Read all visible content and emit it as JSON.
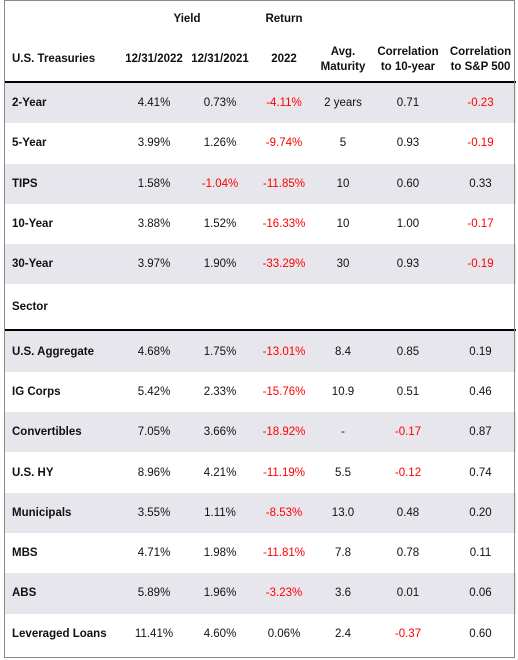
{
  "header": {
    "yield_label": "Yield",
    "return_label": "Return",
    "group_label": "U.S. Treasuries",
    "col_yield_2022": "12/31/2022",
    "col_yield_2021": "12/31/2021",
    "col_return_2022": "2022",
    "col_maturity_line1": "Avg.",
    "col_maturity_line2": "Maturity",
    "col_corr10_line1": "Correlation",
    "col_corr10_line2": "to 10-year",
    "col_corrsp_line1": "Correlation",
    "col_corrsp_line2": "to S&P 500"
  },
  "treasuries": [
    {
      "name": "2-Year",
      "y2022": "4.41%",
      "y2021": "0.73%",
      "ret": "-4.11%",
      "maturity": "2 years",
      "corr10": "0.71",
      "corrsp": "-0.23"
    },
    {
      "name": "5-Year",
      "y2022": "3.99%",
      "y2021": "1.26%",
      "ret": "-9.74%",
      "maturity": "5",
      "corr10": "0.93",
      "corrsp": "-0.19"
    },
    {
      "name": "TIPS",
      "y2022": "1.58%",
      "y2021": "-1.04%",
      "ret": "-11.85%",
      "maturity": "10",
      "corr10": "0.60",
      "corrsp": "0.33"
    },
    {
      "name": "10-Year",
      "y2022": "3.88%",
      "y2021": "1.52%",
      "ret": "-16.33%",
      "maturity": "10",
      "corr10": "1.00",
      "corrsp": "-0.17"
    },
    {
      "name": "30-Year",
      "y2022": "3.97%",
      "y2021": "1.90%",
      "ret": "-33.29%",
      "maturity": "30",
      "corr10": "0.93",
      "corrsp": "-0.19"
    }
  ],
  "sector_label": "Sector",
  "sectors": [
    {
      "name": "U.S. Aggregate",
      "y2022": "4.68%",
      "y2021": "1.75%",
      "ret": "-13.01%",
      "maturity": "8.4",
      "corr10": "0.85",
      "corrsp": "0.19"
    },
    {
      "name": "IG Corps",
      "y2022": "5.42%",
      "y2021": "2.33%",
      "ret": "-15.76%",
      "maturity": "10.9",
      "corr10": "0.51",
      "corrsp": "0.46"
    },
    {
      "name": "Convertibles",
      "y2022": "7.05%",
      "y2021": "3.66%",
      "ret": "-18.92%",
      "maturity": "-",
      "corr10": "-0.17",
      "corrsp": "0.87"
    },
    {
      "name": "U.S. HY",
      "y2022": "8.96%",
      "y2021": "4.21%",
      "ret": "-11.19%",
      "maturity": "5.5",
      "corr10": "-0.12",
      "corrsp": "0.74"
    },
    {
      "name": "Municipals",
      "y2022": "3.55%",
      "y2021": "1.11%",
      "ret": "-8.53%",
      "maturity": "13.0",
      "corr10": "0.48",
      "corrsp": "0.20"
    },
    {
      "name": "MBS",
      "y2022": "4.71%",
      "y2021": "1.98%",
      "ret": "-11.81%",
      "maturity": "7.8",
      "corr10": "0.78",
      "corrsp": "0.11"
    },
    {
      "name": "ABS",
      "y2022": "5.89%",
      "y2021": "1.96%",
      "ret": "-3.23%",
      "maturity": "3.6",
      "corr10": "0.01",
      "corrsp": "0.06"
    },
    {
      "name": "Leveraged Loans",
      "y2022": "11.41%",
      "y2021": "4.60%",
      "ret": "0.06%",
      "maturity": "2.4",
      "corr10": "-0.37",
      "corrsp": "0.60"
    }
  ],
  "colors": {
    "negative": "#ff0000",
    "shade": "#e6e6ec"
  }
}
